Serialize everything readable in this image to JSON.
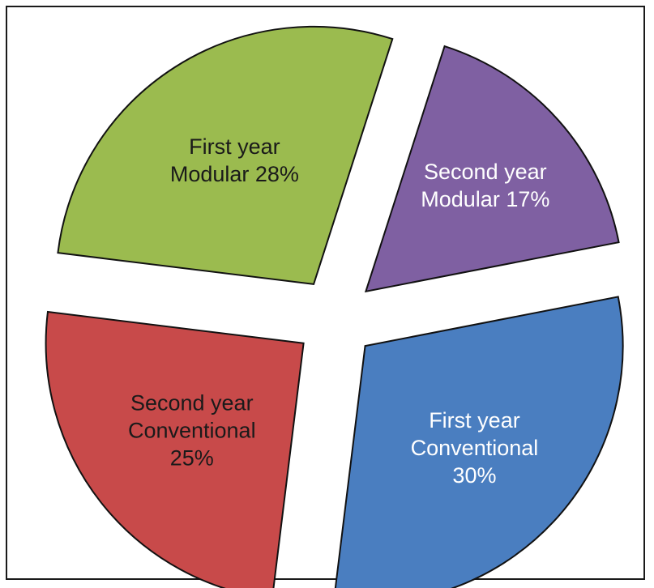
{
  "chart_data": {
    "type": "pie",
    "title": "",
    "slices": [
      {
        "label_lines": [
          "First year",
          "Conventional",
          "30%"
        ],
        "value": 30,
        "color": "#4a7ec0",
        "label_color": "#ffffff"
      },
      {
        "label_lines": [
          "Second year",
          "Conventional",
          "25%"
        ],
        "value": 25,
        "color": "#c84a4a",
        "label_color": "#1a1a1a"
      },
      {
        "label_lines": [
          "First year",
          "Modular 28%"
        ],
        "value": 28,
        "color": "#9bbb4f",
        "label_color": "#1a1a1a"
      },
      {
        "label_lines": [
          "Second year",
          "Modular 17%"
        ],
        "value": 17,
        "color": "#7f60a2",
        "label_color": "#ffffff"
      }
    ],
    "exploded": true,
    "legend": "none"
  }
}
